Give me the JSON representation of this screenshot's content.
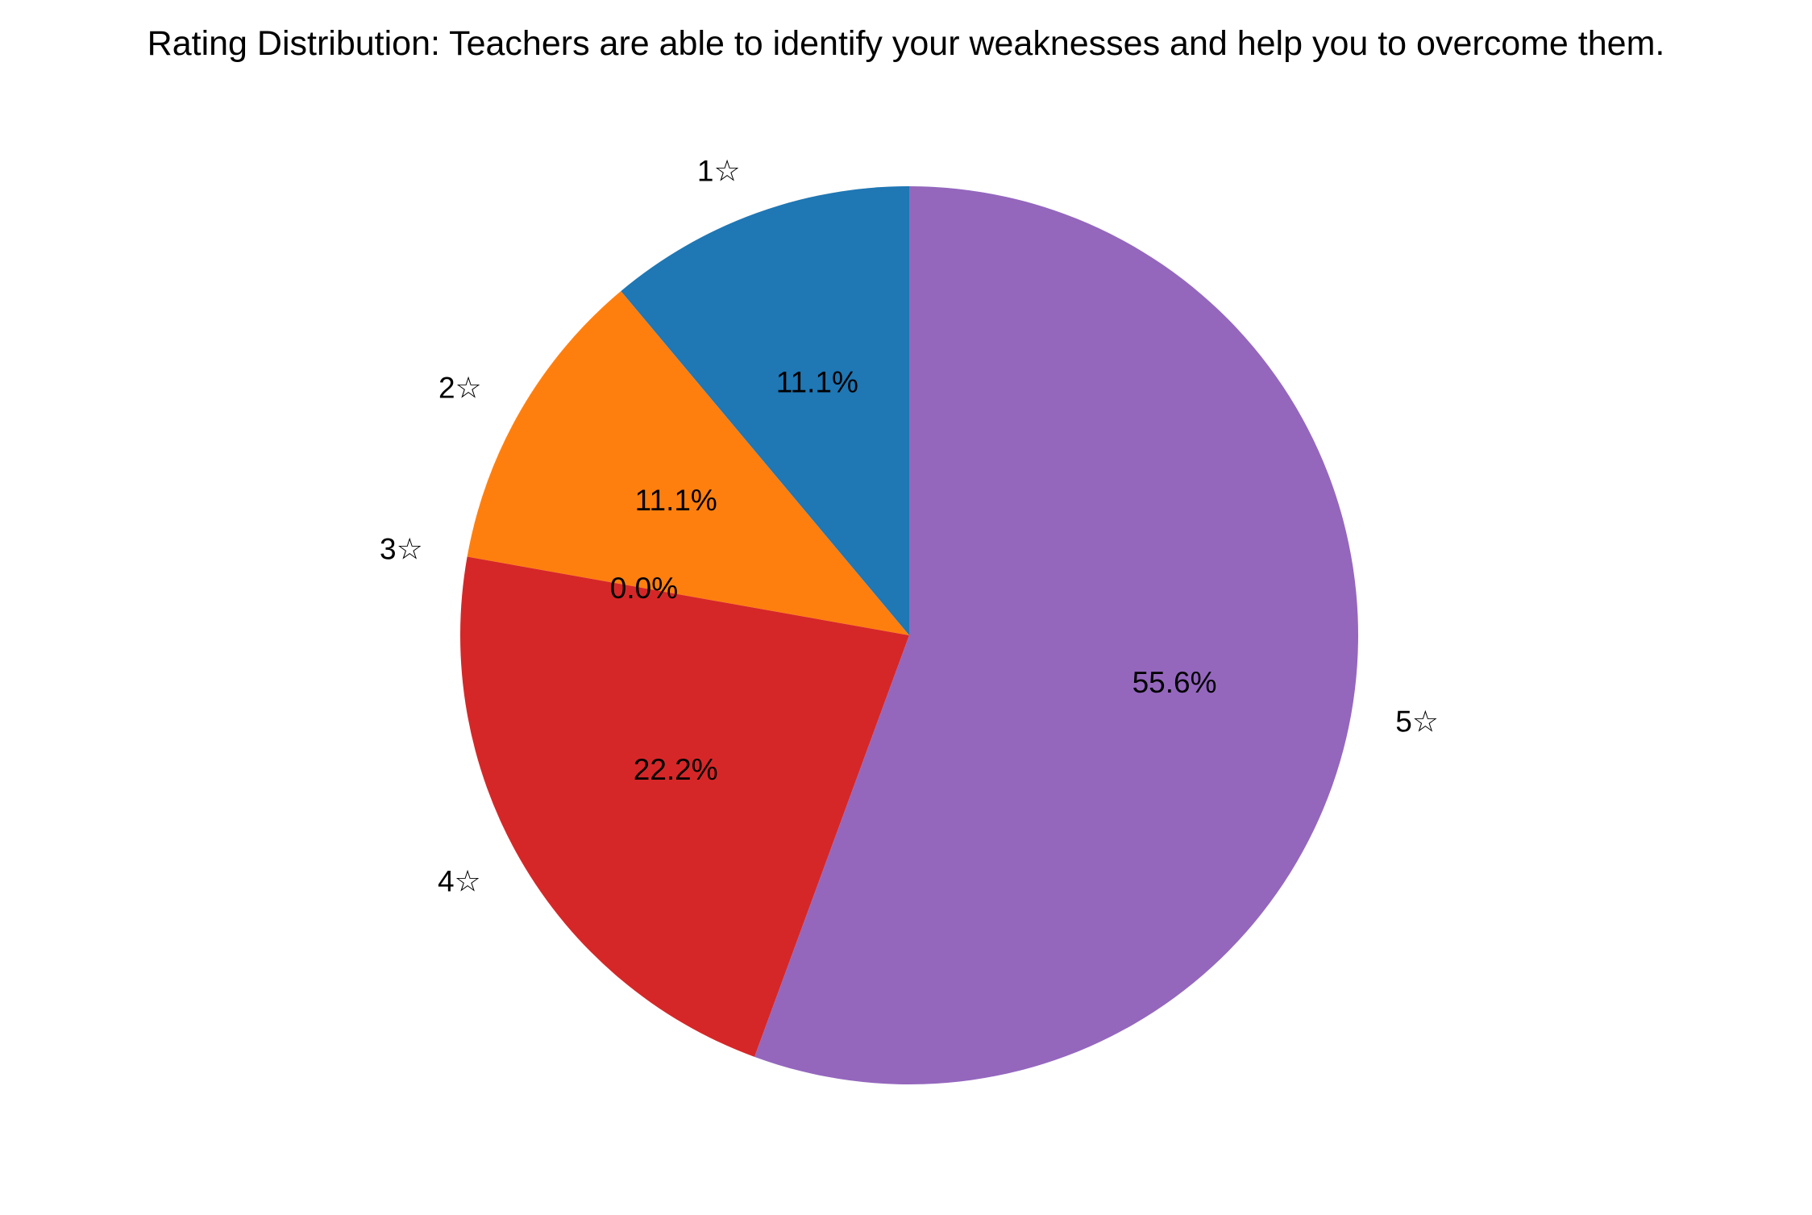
{
  "chart_data": {
    "type": "pie",
    "title": "Rating Distribution: Teachers are able to identify your weaknesses and help you to overcome them.",
    "categories": [
      "1☆",
      "2☆",
      "3☆",
      "4☆",
      "5☆"
    ],
    "values": [
      11.1,
      11.1,
      0.0,
      22.2,
      55.6
    ],
    "value_labels": [
      "11.1%",
      "11.1%",
      "0.0%",
      "22.2%",
      "55.6%"
    ],
    "colors": [
      "#1f77b4",
      "#ff7f0e",
      "#2ca02c",
      "#d62728",
      "#9467bd"
    ],
    "start_angle_deg": 90,
    "direction": "counterclockwise"
  }
}
